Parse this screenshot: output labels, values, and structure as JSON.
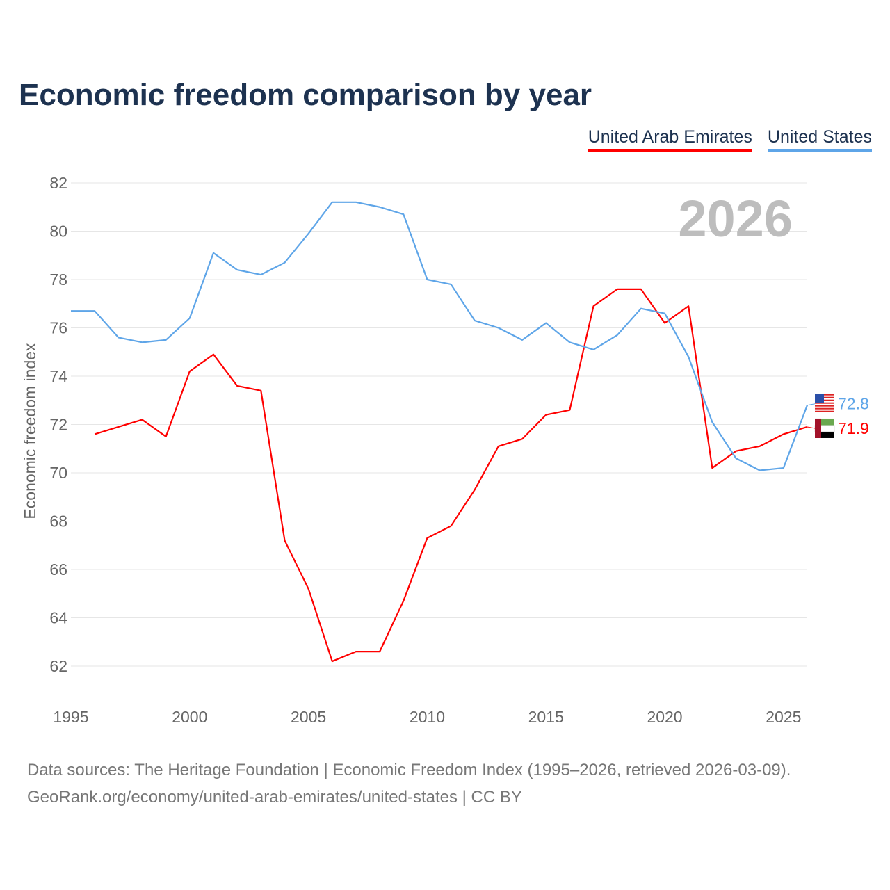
{
  "title": "Economic freedom comparison by year",
  "chart_data": {
    "type": "line",
    "title": "Economic freedom comparison by year",
    "xlabel": "",
    "ylabel": "Economic freedom index",
    "ylim": [
      62,
      82
    ],
    "xlim": [
      1995,
      2026
    ],
    "yticks": [
      62,
      64,
      66,
      68,
      70,
      72,
      74,
      76,
      78,
      80,
      82
    ],
    "xticks": [
      1995,
      2000,
      2005,
      2010,
      2015,
      2020,
      2025
    ],
    "watermark_year": "2026",
    "grid": true,
    "legend_position": "top-right",
    "series": [
      {
        "name": "United Arab Emirates",
        "color": "#ff0000",
        "end_label": "71.9",
        "flag": "uae-flag",
        "x": [
          1996,
          1997,
          1998,
          1999,
          2000,
          2001,
          2002,
          2003,
          2004,
          2005,
          2006,
          2007,
          2008,
          2009,
          2010,
          2011,
          2012,
          2013,
          2014,
          2015,
          2016,
          2017,
          2018,
          2019,
          2020,
          2021,
          2022,
          2023,
          2024,
          2025,
          2026
        ],
        "values": [
          71.6,
          71.9,
          72.2,
          71.5,
          74.2,
          74.9,
          73.6,
          73.4,
          67.2,
          65.2,
          62.2,
          62.6,
          62.6,
          64.7,
          67.3,
          67.8,
          69.3,
          71.1,
          71.4,
          72.4,
          72.6,
          76.9,
          77.6,
          77.6,
          76.2,
          76.9,
          70.2,
          70.9,
          71.1,
          71.6,
          71.9
        ]
      },
      {
        "name": "United States",
        "color": "#5ea5e8",
        "end_label": "72.8",
        "flag": "us-flag",
        "x": [
          1995,
          1996,
          1997,
          1998,
          1999,
          2000,
          2001,
          2002,
          2003,
          2004,
          2005,
          2006,
          2007,
          2008,
          2009,
          2010,
          2011,
          2012,
          2013,
          2014,
          2015,
          2016,
          2017,
          2018,
          2019,
          2020,
          2021,
          2022,
          2023,
          2024,
          2025,
          2026
        ],
        "values": [
          76.7,
          76.7,
          75.6,
          75.4,
          75.5,
          76.4,
          79.1,
          78.4,
          78.2,
          78.7,
          79.9,
          81.2,
          81.2,
          81.0,
          80.7,
          78.0,
          77.8,
          76.3,
          76.0,
          75.5,
          76.2,
          75.4,
          75.1,
          75.7,
          76.8,
          76.6,
          74.8,
          72.1,
          70.6,
          70.1,
          70.2,
          72.8
        ]
      }
    ]
  },
  "source": {
    "line1": "Data sources: The Heritage Foundation | Economic Freedom Index (1995–2026, retrieved 2026-03-09).",
    "line2": "GeoRank.org/economy/united-arab-emirates/united-states | CC BY"
  }
}
